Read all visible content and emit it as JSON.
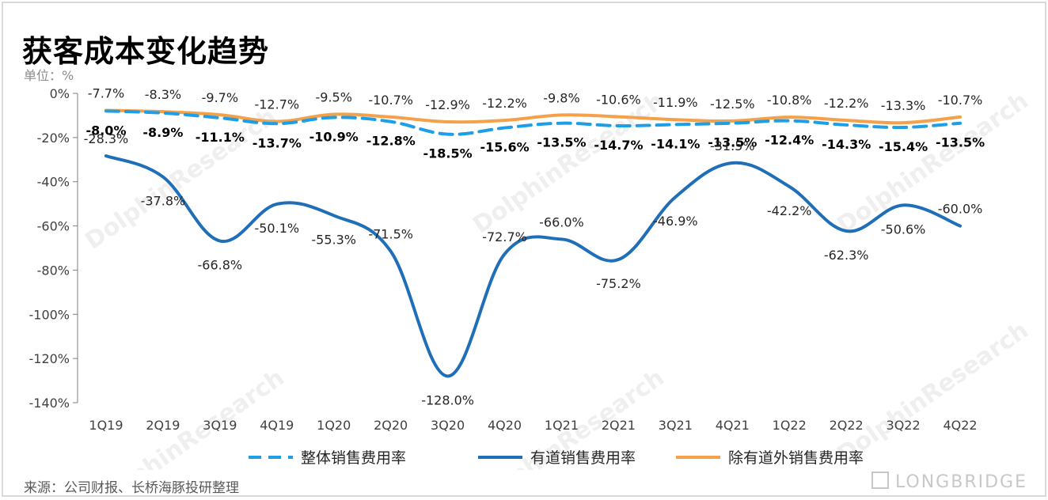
{
  "title": "获客成本变化趋势",
  "unit_label": "单位：%",
  "source": "来源：公司财报、长桥海豚投研整理",
  "brand": "LONGBRIDGE",
  "watermark_text": "DolphinResearch",
  "chart_data": {
    "type": "line",
    "categories": [
      "1Q19",
      "2Q19",
      "3Q19",
      "4Q19",
      "1Q20",
      "2Q20",
      "3Q20",
      "4Q20",
      "1Q21",
      "2Q21",
      "3Q21",
      "4Q21",
      "1Q22",
      "2Q22",
      "3Q22",
      "4Q22"
    ],
    "ylim": [
      -140,
      0
    ],
    "yticks": [
      0,
      -20,
      -40,
      -60,
      -80,
      -100,
      -120,
      -140
    ],
    "ytick_labels": [
      "0%",
      "-20%",
      "-40%",
      "-60%",
      "-80%",
      "-100%",
      "-120%",
      "-140%"
    ],
    "legend_position": "bottom",
    "grid": false,
    "series": [
      {
        "name": "整体销售费用率",
        "style": "dashed",
        "color": "#1e9ee6",
        "values": [
          -8.0,
          -8.9,
          -11.1,
          -13.7,
          -10.9,
          -12.8,
          -18.5,
          -15.6,
          -13.5,
          -14.7,
          -14.1,
          -13.5,
          -12.4,
          -14.3,
          -15.4,
          -13.5
        ],
        "labels": [
          "-8.0%",
          "-8.9%",
          "-11.1%",
          "-13.7%",
          "-10.9%",
          "-12.8%",
          "-18.5%",
          "-15.6%",
          "-13.5%",
          "-14.7%",
          "-14.1%",
          "-13.5%",
          "-12.4%",
          "-14.3%",
          "-15.4%",
          "-13.5%"
        ]
      },
      {
        "name": "有道销售费用率",
        "style": "solid",
        "color": "#1f6fb8",
        "values": [
          -28.3,
          -37.8,
          -66.8,
          -50.1,
          -55.3,
          -71.5,
          -128.0,
          -72.7,
          -66.0,
          -75.2,
          -46.9,
          -31.5,
          -42.2,
          -62.3,
          -50.6,
          -60.0
        ],
        "labels": [
          "-28.3%",
          "-37.8%",
          "-66.8%",
          "-50.1%",
          "-55.3%",
          "-71.5%",
          "-128.0%",
          "-72.7%",
          "-66.0%",
          "-75.2%",
          "-46.9%",
          "-31.5%",
          "-42.2%",
          "-62.3%",
          "-50.6%",
          "-60.0%"
        ]
      },
      {
        "name": "除有道外销售费用率",
        "style": "solid",
        "color": "#f4a14a",
        "values": [
          -7.7,
          -8.3,
          -9.7,
          -12.7,
          -9.5,
          -10.7,
          -12.9,
          -12.2,
          -9.8,
          -10.6,
          -11.9,
          -12.5,
          -10.8,
          -12.2,
          -13.3,
          -10.7
        ],
        "labels": [
          "-7.7%",
          "-8.3%",
          "-9.7%",
          "-12.7%",
          "-9.5%",
          "-10.7%",
          "-12.9%",
          "-12.2%",
          "-9.8%",
          "-10.6%",
          "-11.9%",
          "-12.5%",
          "-10.8%",
          "-12.2%",
          "-13.3%",
          "-10.7%"
        ]
      }
    ]
  }
}
